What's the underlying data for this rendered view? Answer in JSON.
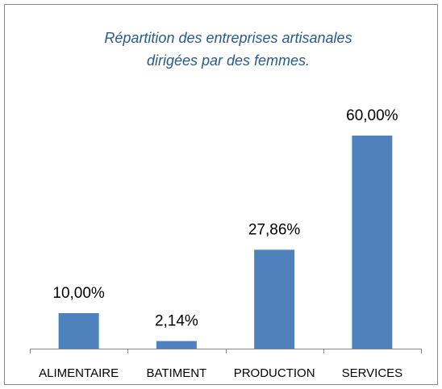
{
  "chart_data": {
    "type": "bar",
    "title": [
      "Répartition des entreprises artisanales",
      "dirigées par des femmes."
    ],
    "categories": [
      "ALIMENTAIRE",
      "BATIMENT",
      "PRODUCTION",
      "SERVICES"
    ],
    "values": [
      10,
      2.14,
      27.86,
      60
    ],
    "value_labels": [
      "10,00%",
      "2,14%",
      "27,86%",
      "60,00%"
    ],
    "color": "#4f81bd",
    "ylim": [
      0,
      60
    ]
  }
}
